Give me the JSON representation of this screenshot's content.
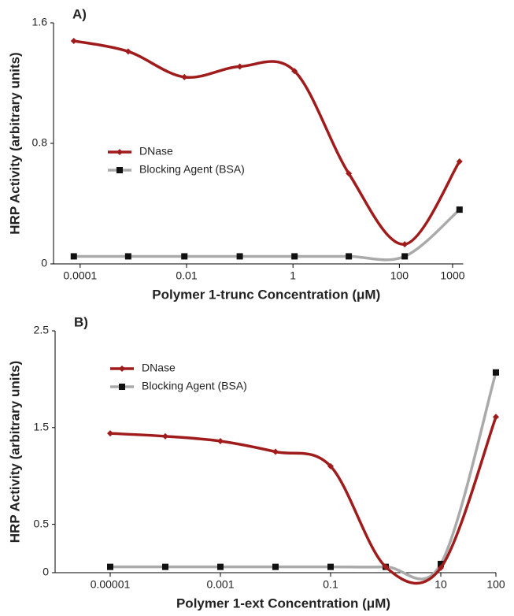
{
  "chart_data": [
    {
      "type": "line",
      "title": "A)",
      "xlabel": "Polymer 1-trunc Concentration (μM)",
      "ylabel": "HRP Activity (arbitrary units)",
      "xscale": "log",
      "xlim": [
        3.16e-05,
        1585
      ],
      "ylim": [
        0,
        1.6
      ],
      "xticks": [
        {
          "value": 0.0001,
          "label": "0.0001"
        },
        {
          "value": 0.01,
          "label": "0.01"
        },
        1,
        100,
        1000
      ],
      "yticks": [
        0,
        0.8,
        1.6
      ],
      "x": [
        7.6e-05,
        0.0008,
        0.0091,
        0.1,
        1.07,
        11.2,
        126,
        1350
      ],
      "series": [
        {
          "name": "DNase",
          "color": "#a01c1c",
          "values": [
            1.48,
            1.41,
            1.24,
            1.31,
            1.28,
            0.6,
            0.13,
            0.68
          ]
        },
        {
          "name": "Blocking Agent (BSA)",
          "color": "#aaaaaa",
          "values": [
            0.05,
            0.05,
            0.05,
            0.05,
            0.05,
            0.05,
            0.05,
            0.36
          ]
        }
      ]
    },
    {
      "type": "line",
      "title": "B)",
      "xlabel": "Polymer 1-ext Concentration (μM)",
      "ylabel": "HRP Activity (arbitrary units)",
      "xscale": "log",
      "xlim": [
        1e-06,
        100
      ],
      "ylim": [
        0,
        2.5
      ],
      "xticks": [
        {
          "value": 1e-05,
          "label": "0.00001"
        },
        {
          "value": 0.001,
          "label": "0.001"
        },
        0.1,
        10,
        100
      ],
      "yticks": [
        0,
        0.5,
        1.5,
        2.5
      ],
      "x": [
        1e-05,
        0.0001,
        0.001,
        0.01,
        0.1,
        1,
        10,
        100
      ],
      "series": [
        {
          "name": "DNase",
          "color": "#a01c1c",
          "values": [
            1.44,
            1.41,
            1.36,
            1.25,
            1.1,
            0.06,
            0.05,
            1.61
          ]
        },
        {
          "name": "Blocking Agent (BSA)",
          "color": "#aaaaaa",
          "values": [
            0.06,
            0.06,
            0.06,
            0.06,
            0.06,
            0.06,
            0.09,
            2.07
          ]
        }
      ]
    }
  ]
}
